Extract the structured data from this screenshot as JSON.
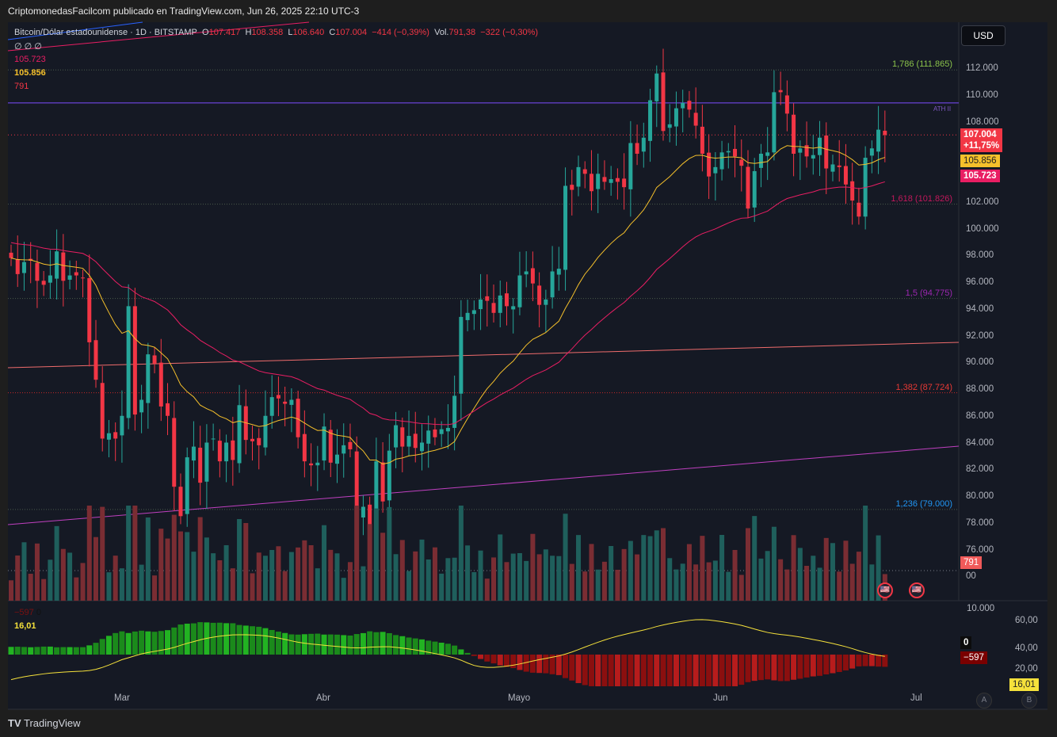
{
  "header": "CriptomonedasFacilcom publicado en TradingView.com, Jun 26, 2025 22:10 UTC-3",
  "legend": {
    "symbol": "Bitcoin/Dólar estadounidense · 1D · BITSTAMP",
    "o_label": "O",
    "o": "107.417",
    "h_label": "H",
    "h": "108.358",
    "l_label": "L",
    "l": "106.640",
    "c_label": "C",
    "c": "107.004",
    "chg": "−414 (−0,39%)",
    "vol_label": "Vol.",
    "vol": "791,38",
    "vol_chg": "−322 (−0,30%)",
    "row2": "∅ ∅ ∅",
    "ma_pink": "105.723",
    "ma_yellow": "105.856",
    "vol_val": "791",
    "osc_vals": "−597",
    "osc_zero": "0",
    "osc_line": "16,01"
  },
  "currency": "USD",
  "price_axis": [
    "112.000",
    "110.000",
    "108.000",
    "102.000",
    "100.000",
    "98.000",
    "96.000",
    "94.000",
    "92.000",
    "90.000",
    "88.000",
    "86.000",
    "84.000",
    "82.000",
    "80.000",
    "78.000",
    "76.000",
    "00"
  ],
  "price_axis_values": [
    112000,
    110000,
    108000,
    102000,
    100000,
    98000,
    96000,
    94000,
    92000,
    90000,
    88000,
    86000,
    84000,
    82000,
    80000,
    78000,
    76000,
    74000
  ],
  "tags": {
    "price": "107.004",
    "pct": "+11,75%",
    "ma_yellow": "105.856",
    "ma_pink": "105.723",
    "volume": "791",
    "osc_zero": "0",
    "osc_hist": "−597",
    "osc_line": "16,01"
  },
  "osc_axis": [
    "10.000",
    "60,00",
    "40,00",
    "20,00"
  ],
  "fib": [
    {
      "label": "1,786 (111.865)",
      "price": 111865,
      "color": "#8bc34a"
    },
    {
      "label": "1,618 (101.826)",
      "price": 101826,
      "color": "#c2185b"
    },
    {
      "label": "1,5 (94.775)",
      "price": 94775,
      "color": "#9c27b0"
    },
    {
      "label": "1,382 (87.724)",
      "price": 87724,
      "color": "#e53935"
    },
    {
      "label": "1,236 (79.000)",
      "price": 79000,
      "color": "#2196f3"
    }
  ],
  "ath": {
    "label": "ATH II",
    "price": 109400
  },
  "time_axis": [
    "Mar",
    "Abr",
    "Mayo",
    "Jun",
    "Jul"
  ],
  "scale_buttons": [
    "A",
    "B"
  ],
  "brand": "TradingView",
  "colors": {
    "up": "#26a69a",
    "down": "#f23645",
    "ma_yellow": "#f5c02b",
    "ma_pink": "#e91e63"
  },
  "chart_data": {
    "type": "candlestick",
    "start": "2025-02-12",
    "interval": "1D",
    "closes": [
      97.8,
      96.6,
      97.5,
      97.6,
      96.1,
      95.8,
      96.5,
      98.3,
      96.1,
      96.5,
      96.5,
      96.3,
      91.5,
      88.7,
      84.3,
      84.7,
      84.3,
      86.0,
      94.2,
      86.1,
      87.2,
      90.6,
      89.9,
      86.7,
      86.0,
      80.7,
      78.5,
      82.9,
      83.7,
      81.0,
      84.0,
      84.3,
      82.6,
      84.0,
      82.7,
      86.8,
      84.2,
      84.1,
      83.8,
      86.0,
      87.4,
      87.3,
      86.9,
      87.2,
      84.4,
      82.6,
      82.3,
      82.5,
      85.2,
      82.5,
      83.1,
      83.8,
      83.5,
      78.4,
      79.2,
      76.3,
      82.6,
      79.6,
      83.4,
      85.3,
      83.7,
      84.5,
      83.6,
      84.0,
      84.9,
      84.4,
      85.0,
      85.1,
      87.5,
      93.4,
      93.7,
      93.9,
      94.7,
      94.6,
      93.7,
      95.0,
      94.2,
      94.2,
      96.5,
      96.8,
      95.9,
      94.3,
      94.7,
      96.8,
      97.0,
      103.2,
      102.9,
      104.6,
      104.1,
      102.8,
      104.1,
      103.5,
      103.7,
      103.5,
      103.1,
      106.4,
      105.6,
      106.8,
      109.6,
      111.6,
      107.3,
      107.8,
      109.0,
      109.4,
      108.9,
      107.7,
      105.6,
      103.9,
      104.6,
      105.7,
      105.8,
      105.4,
      104.7,
      101.5,
      104.3,
      105.6,
      105.7,
      110.2,
      110.2,
      108.6,
      105.6,
      106.0,
      105.4,
      105.5,
      106.8,
      104.5,
      104.8,
      104.6,
      103.3,
      102.1,
      100.9,
      105.3,
      106.0,
      107.4,
      107.0
    ],
    "unit": "thousand USD"
  }
}
